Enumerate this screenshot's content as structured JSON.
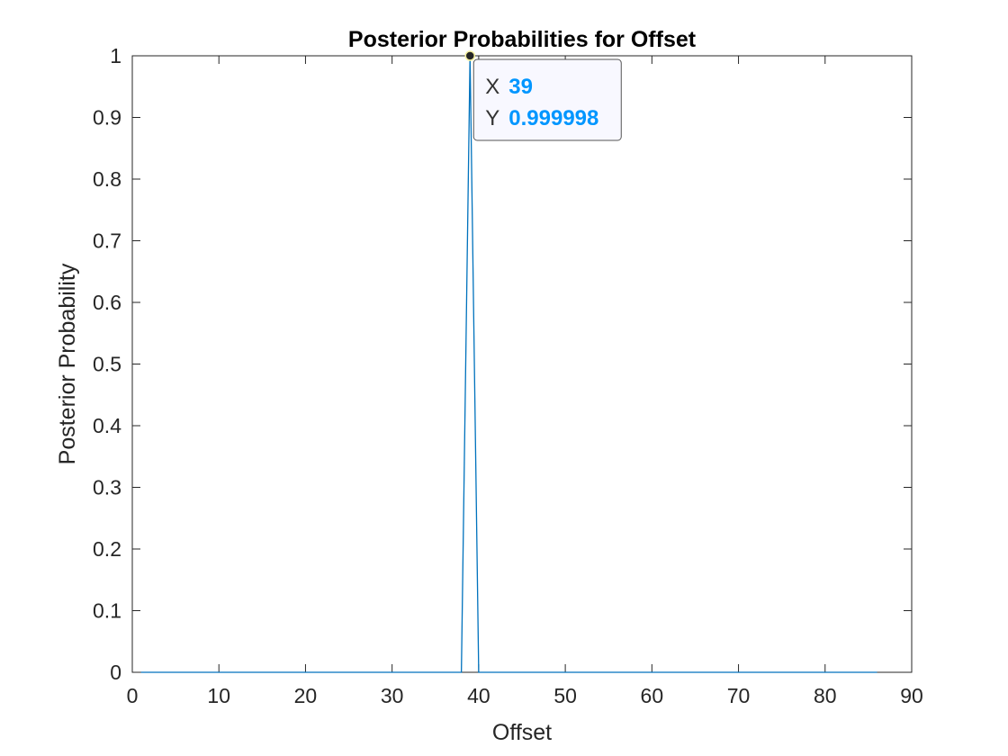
{
  "chart_data": {
    "type": "line",
    "title": "Posterior Probabilities for Offset",
    "xlabel": "Offset",
    "ylabel": "Posterior Probability",
    "xlim": [
      0,
      90
    ],
    "ylim": [
      0,
      1
    ],
    "xticks": [
      0,
      10,
      20,
      30,
      40,
      50,
      60,
      70,
      80,
      90
    ],
    "yticks": [
      0,
      0.1,
      0.2,
      0.3,
      0.4,
      0.5,
      0.6,
      0.7,
      0.8,
      0.9,
      1
    ],
    "xtick_labels": [
      "0",
      "10",
      "20",
      "30",
      "40",
      "50",
      "60",
      "70",
      "80",
      "90"
    ],
    "ytick_labels": [
      "0",
      "0.1",
      "0.2",
      "0.3",
      "0.4",
      "0.5",
      "0.6",
      "0.7",
      "0.8",
      "0.9",
      "1"
    ],
    "grid": false,
    "series": [
      {
        "color": "#0072BD",
        "x": [
          1,
          38,
          39,
          40,
          86
        ],
        "y": [
          0,
          0,
          0.999998,
          0,
          0
        ]
      }
    ],
    "datatip": {
      "x_key": "X",
      "x_value": "39",
      "y_key": "Y",
      "y_value": "0.999998",
      "x": 39,
      "y": 0.999998,
      "value_color": "#0096ff"
    }
  }
}
